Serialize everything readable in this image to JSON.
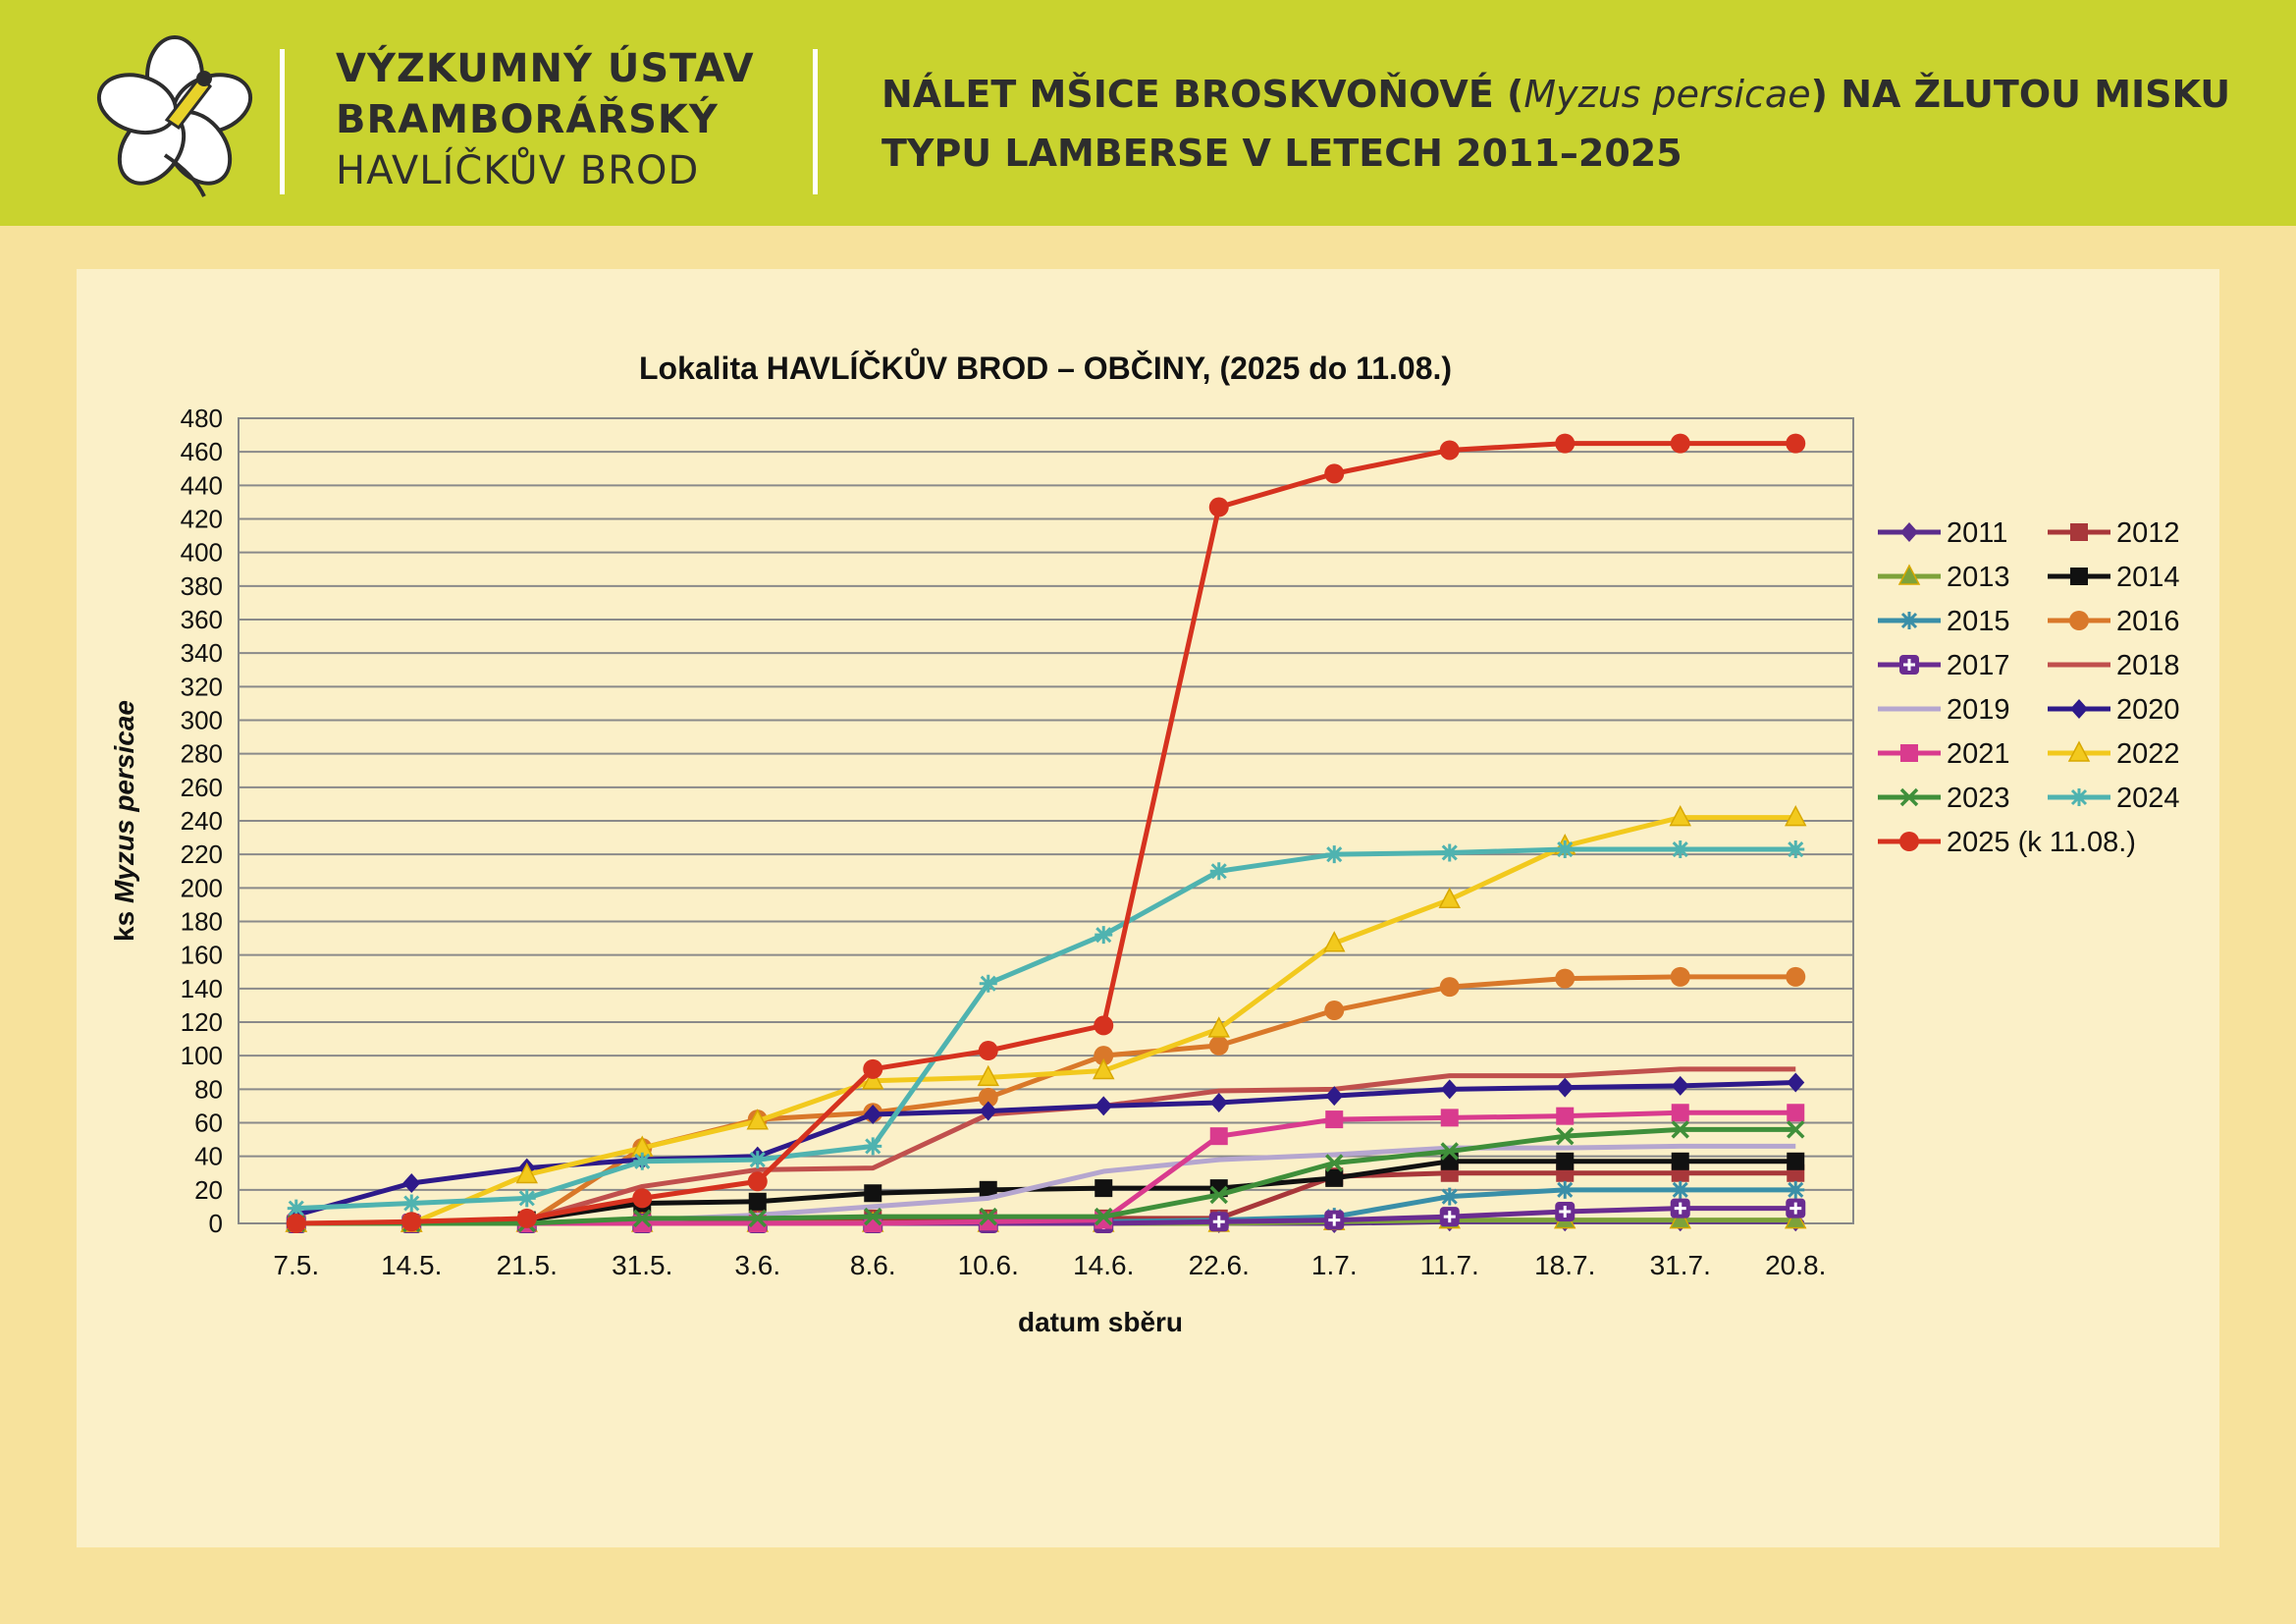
{
  "header": {
    "org_line1": "VÝZKUMNÝ ÚSTAV",
    "org_line2": "BRAMBORÁŘSKÝ",
    "org_line3": "HAVLÍČKŮV BROD",
    "headline_part1": "NÁLET MŠICE BROSKVOŇOVÉ (",
    "headline_species": "Myzus persicae",
    "headline_part2": ") NA ŽLUTOU MISKU",
    "headline_line2": "TYPU LAMBERSE V LETECH 2011–2025"
  },
  "colors": {
    "header_bg": "#c9d32f",
    "page_bg": "#f7e29c",
    "panel_bg": "#fbf0c8"
  },
  "chart_data": {
    "type": "line",
    "title": "Lokalita HAVLÍČKŮV BROD – OBČINY, (2025 do 11.08.)",
    "xlabel": "datum sběru",
    "ylabel_prefix": "ks ",
    "ylabel_species": "Myzus persicae",
    "ylim": [
      0,
      480
    ],
    "ytick_step": 20,
    "grid": true,
    "legend_position": "right",
    "categories": [
      "7.5.",
      "14.5.",
      "21.5.",
      "31.5.",
      "3.6.",
      "8.6.",
      "10.6.",
      "14.6.",
      "22.6.",
      "1.7.",
      "11.7.",
      "18.7.",
      "31.7.",
      "20.8."
    ],
    "series": [
      {
        "name": "2011",
        "color": "#5b2d8c",
        "marker": "diamond",
        "values": [
          0,
          0,
          0,
          0,
          0,
          0,
          0,
          0,
          0,
          0,
          1,
          1,
          1,
          1
        ]
      },
      {
        "name": "2012",
        "color": "#a8373a",
        "marker": "square",
        "values": [
          0,
          0,
          0,
          2,
          3,
          3,
          3,
          3,
          3,
          28,
          30,
          30,
          30,
          30
        ]
      },
      {
        "name": "2013",
        "color": "#7da23a",
        "marker": "triangle",
        "values": [
          0,
          0,
          0,
          0,
          0,
          0,
          0,
          0,
          0,
          1,
          2,
          2,
          2,
          2
        ]
      },
      {
        "name": "2014",
        "color": "#111111",
        "marker": "square",
        "values": [
          0,
          0,
          2,
          12,
          13,
          18,
          20,
          21,
          21,
          27,
          37,
          37,
          37,
          37
        ]
      },
      {
        "name": "2015",
        "color": "#3a8fa8",
        "marker": "star",
        "values": [
          0,
          0,
          0,
          0,
          0,
          0,
          0,
          1,
          2,
          4,
          16,
          20,
          20,
          20
        ]
      },
      {
        "name": "2016",
        "color": "#d9782a",
        "marker": "circle",
        "values": [
          0,
          0,
          0,
          45,
          62,
          66,
          75,
          100,
          106,
          127,
          141,
          146,
          147,
          147
        ]
      },
      {
        "name": "2017",
        "color": "#6a2c91",
        "marker": "plus",
        "values": [
          0,
          0,
          0,
          0,
          0,
          0,
          0,
          0,
          1,
          2,
          4,
          7,
          9,
          9
        ]
      },
      {
        "name": "2018",
        "color": "#c0504d",
        "marker": "none",
        "values": [
          0,
          0,
          2,
          22,
          32,
          33,
          65,
          70,
          79,
          80,
          88,
          88,
          92,
          92
        ]
      },
      {
        "name": "2019",
        "color": "#b5a6cf",
        "marker": "none",
        "values": [
          0,
          0,
          0,
          2,
          5,
          10,
          15,
          31,
          38,
          41,
          45,
          45,
          46,
          46
        ]
      },
      {
        "name": "2020",
        "color": "#2e1a8a",
        "marker": "diamond",
        "values": [
          5,
          24,
          33,
          38,
          40,
          65,
          67,
          70,
          72,
          76,
          80,
          81,
          82,
          84
        ]
      },
      {
        "name": "2021",
        "color": "#d93b8e",
        "marker": "square",
        "values": [
          0,
          0,
          0,
          0,
          0,
          0,
          1,
          2,
          52,
          62,
          63,
          64,
          66,
          66
        ]
      },
      {
        "name": "2022",
        "color": "#f2c91d",
        "marker": "triangle",
        "values": [
          0,
          0,
          29,
          45,
          61,
          85,
          87,
          91,
          116,
          167,
          193,
          225,
          242,
          242
        ]
      },
      {
        "name": "2023",
        "color": "#3f8f3a",
        "marker": "x",
        "values": [
          0,
          0,
          0,
          3,
          3,
          4,
          4,
          4,
          17,
          36,
          43,
          52,
          56,
          56
        ]
      },
      {
        "name": "2024",
        "color": "#4fb3b0",
        "marker": "star",
        "values": [
          9,
          12,
          15,
          37,
          38,
          46,
          143,
          172,
          210,
          220,
          221,
          223,
          223,
          223
        ]
      },
      {
        "name": "2025 (k 11.08.)",
        "color": "#d6321f",
        "marker": "circle",
        "values": [
          0,
          1,
          3,
          15,
          25,
          92,
          103,
          118,
          427,
          447,
          461,
          465,
          465,
          465
        ]
      }
    ]
  }
}
